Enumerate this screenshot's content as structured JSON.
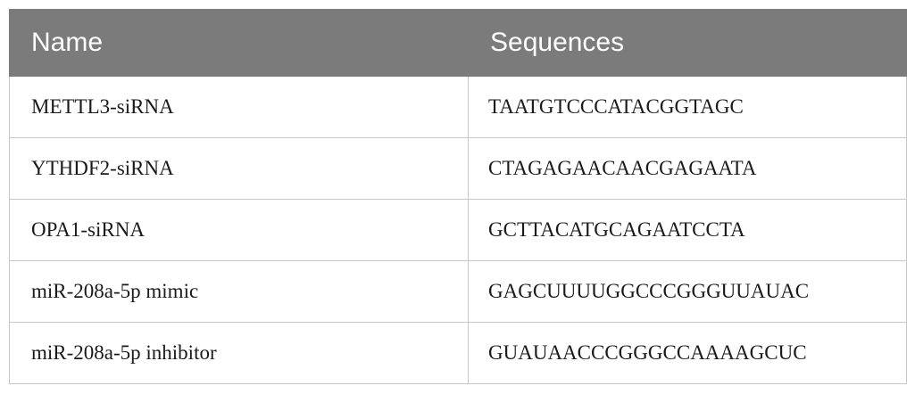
{
  "table": {
    "headers": [
      "Name",
      "Sequences"
    ],
    "rows": [
      {
        "name": "METTL3-siRNA",
        "sequence": "TAATGTCCCATACGGTAGC"
      },
      {
        "name": "YTHDF2-siRNA",
        "sequence": "CTAGAGAACAACGAGAATA"
      },
      {
        "name": "OPA1-siRNA",
        "sequence": "GCTTACATGCAGAATCCTA"
      },
      {
        "name": "miR-208a-5p mimic",
        "sequence": "GAGCUUUUGGCCCGGGUUAUAC"
      },
      {
        "name": "miR-208a-5p inhibitor",
        "sequence": "GUAUAACCCGGGCCAAAAGCUC"
      }
    ]
  }
}
